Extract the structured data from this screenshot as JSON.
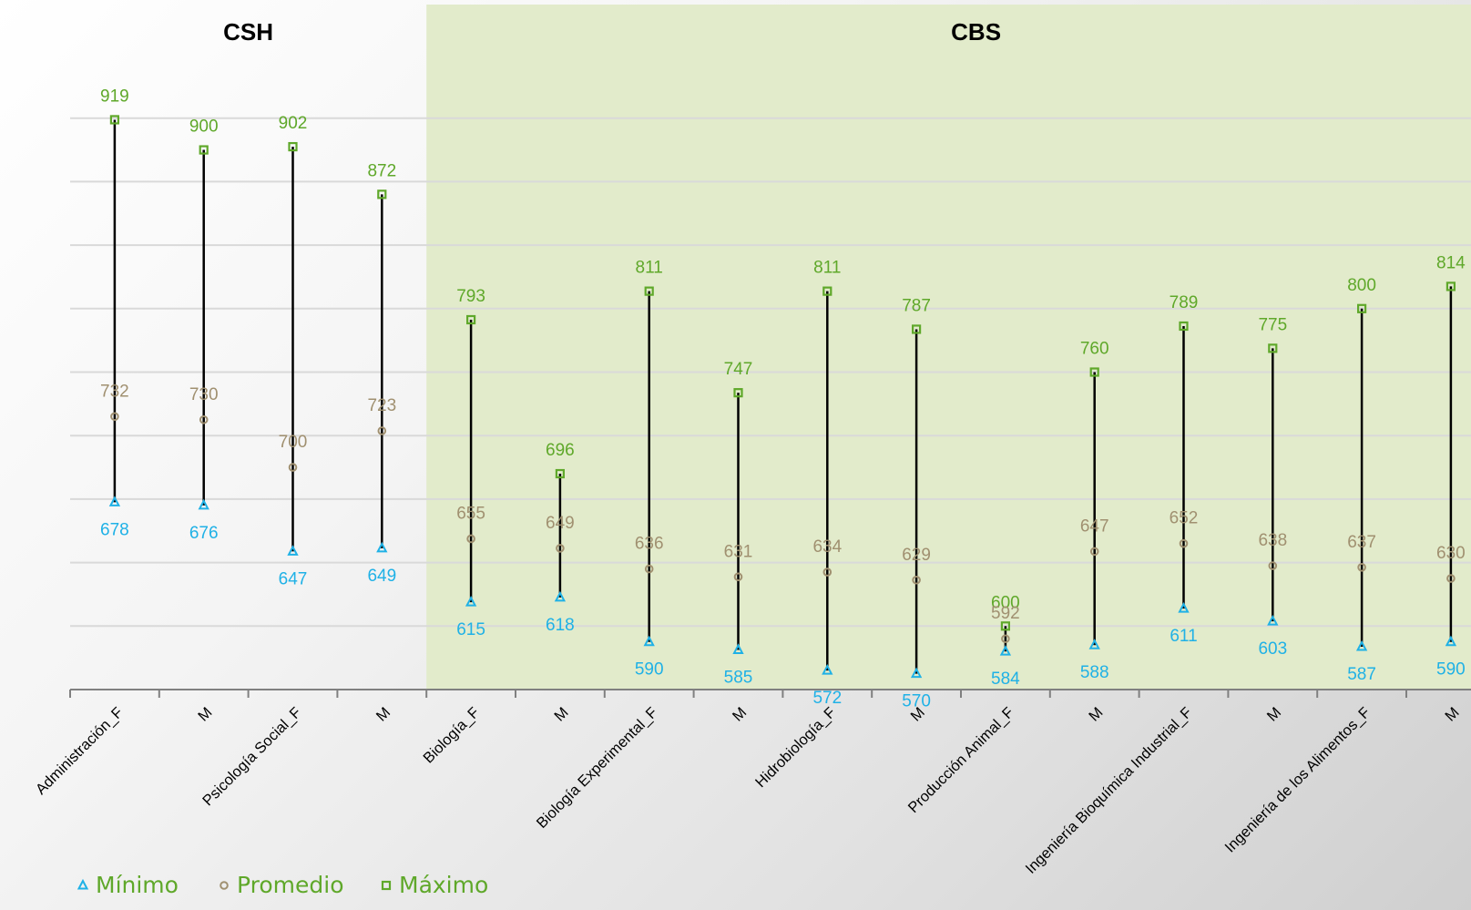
{
  "chart_data": {
    "type": "range",
    "groups": [
      {
        "label": "CSH",
        "background": "none"
      },
      {
        "label": "CBS",
        "background": "#e2ebcb"
      }
    ],
    "categories": [
      "Administración_F",
      "M",
      "Psicología Social_F",
      "M",
      "Biología_F",
      "M",
      "Biología Experimental_F",
      "M",
      "Hidrobiología_F",
      "M",
      "Producción Animal_F",
      "M",
      "Ingeniería Bioquímica Industrial_F",
      "M",
      "Ingeniería de los Alimentos_F",
      "M"
    ],
    "category_group": [
      0,
      0,
      0,
      0,
      1,
      1,
      1,
      1,
      1,
      1,
      1,
      1,
      1,
      1,
      1,
      1
    ],
    "series": [
      {
        "name": "Mínimo",
        "marker": "triangle",
        "color": "#1fb1e6",
        "values": [
          678,
          676,
          647,
          649,
          615,
          618,
          590,
          585,
          572,
          570,
          584,
          588,
          611,
          603,
          587,
          590
        ]
      },
      {
        "name": "Promedio",
        "marker": "circle",
        "color": "#a09070",
        "values": [
          732,
          730,
          700,
          723,
          655,
          649,
          636,
          631,
          634,
          629,
          592,
          647,
          652,
          638,
          637,
          630
        ]
      },
      {
        "name": "Máximo",
        "marker": "square",
        "color": "#5fa82a",
        "values": [
          919,
          900,
          902,
          872,
          793,
          696,
          811,
          747,
          811,
          787,
          600,
          760,
          789,
          775,
          800,
          814
        ]
      }
    ],
    "ylim": [
      560,
      960
    ],
    "grid": true,
    "legend": "bottom-left",
    "xlabel": "",
    "ylabel": ""
  }
}
